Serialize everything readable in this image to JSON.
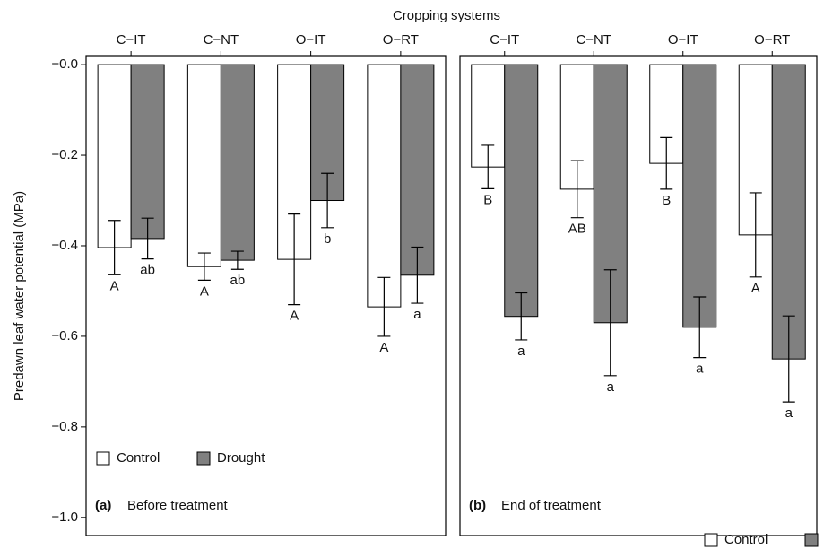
{
  "title": "Cropping systems",
  "ylabel": "Predawn leaf water potential (MPa)",
  "chart_data": [
    {
      "type": "bar",
      "panel_label": "(a)",
      "subtitle": "Before treatment",
      "categories": [
        "C−IT",
        "C−NT",
        "O−IT",
        "O−RT"
      ],
      "ylim": [
        -1.04,
        0.02
      ],
      "yticks": [
        {
          "value": 0,
          "label": "−0.0"
        },
        {
          "value": -0.2,
          "label": "−0.2"
        },
        {
          "value": -0.4,
          "label": "−0.4"
        },
        {
          "value": -0.6,
          "label": "−0.6"
        },
        {
          "value": -0.8,
          "label": "−0.8"
        },
        {
          "value": -1.0,
          "label": "−1.0"
        }
      ],
      "legend": "lower left",
      "series": [
        {
          "name": "Control",
          "color": "#ffffff",
          "values": [
            -0.404,
            -0.446,
            -0.43,
            -0.535
          ],
          "errors": [
            0.06,
            0.03,
            0.1,
            0.065
          ],
          "letters": [
            "A",
            "A",
            "A",
            "A"
          ]
        },
        {
          "name": "Drought",
          "color": "#808080",
          "values": [
            -0.384,
            -0.432,
            -0.3,
            -0.465
          ],
          "errors": [
            0.045,
            0.02,
            0.06,
            0.062
          ],
          "letters": [
            "ab",
            "ab",
            "b",
            "a"
          ]
        }
      ]
    },
    {
      "type": "bar",
      "panel_label": "(b)",
      "subtitle": "End of treatment",
      "categories": [
        "C−IT",
        "C−NT",
        "O−IT",
        "O−RT"
      ],
      "ylim": [
        -1.04,
        0.02
      ],
      "legend": "below right",
      "series": [
        {
          "name": "Control",
          "color": "#ffffff",
          "values": [
            -0.226,
            -0.275,
            -0.218,
            -0.376
          ],
          "errors": [
            0.048,
            0.063,
            0.057,
            0.093
          ],
          "letters": [
            "B",
            "AB",
            "B",
            "A"
          ]
        },
        {
          "name": "Drought",
          "color": "#808080",
          "values": [
            -0.556,
            -0.57,
            -0.58,
            -0.65
          ],
          "errors": [
            0.052,
            0.117,
            0.067,
            0.095
          ],
          "letters": [
            "a",
            "a",
            "a",
            "a"
          ]
        }
      ]
    }
  ]
}
